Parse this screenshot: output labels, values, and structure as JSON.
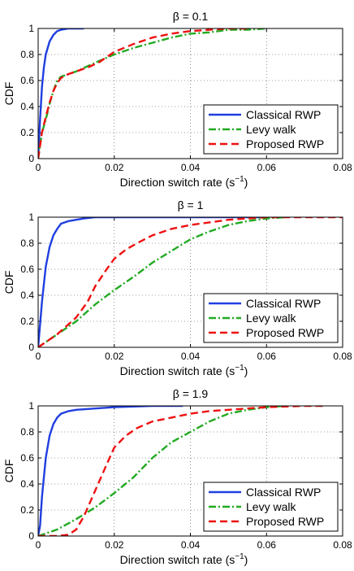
{
  "chart_data": [
    {
      "type": "line",
      "title": "β = 0.1",
      "xlabel": "Direction switch rate (s",
      "xlabel_sup": "−1",
      "xlabel_end": ")",
      "ylabel": "CDF",
      "xlim": [
        0,
        0.08
      ],
      "ylim": [
        0,
        1
      ],
      "xticks": [
        "0",
        "0.02",
        "0.04",
        "0.06",
        "0.08"
      ],
      "yticks": [
        "0",
        "0.2",
        "0.4",
        "0.6",
        "0.8",
        "1"
      ],
      "grid": true,
      "legend": "bottom-right",
      "series": [
        {
          "name": "Classical RWP",
          "color": "#1f3fe0",
          "dash": "solid",
          "x": [
            0,
            0.0005,
            0.001,
            0.0015,
            0.002,
            0.003,
            0.004,
            0.005,
            0.006,
            0.007,
            0.008,
            0.009,
            0.01,
            0.012
          ],
          "y": [
            0,
            0.3,
            0.55,
            0.7,
            0.8,
            0.9,
            0.95,
            0.98,
            0.99,
            0.995,
            1,
            1,
            1,
            1
          ]
        },
        {
          "name": "Levy walk",
          "color": "#22aa22",
          "dash": "dashdot",
          "x": [
            0,
            0.001,
            0.002,
            0.003,
            0.004,
            0.005,
            0.006,
            0.008,
            0.01,
            0.013,
            0.016,
            0.02,
            0.025,
            0.03,
            0.035,
            0.04,
            0.045,
            0.05,
            0.055,
            0.06
          ],
          "y": [
            0,
            0.2,
            0.3,
            0.42,
            0.52,
            0.6,
            0.63,
            0.65,
            0.67,
            0.71,
            0.75,
            0.8,
            0.85,
            0.89,
            0.93,
            0.96,
            0.97,
            0.99,
            0.99,
            1
          ]
        },
        {
          "name": "Proposed RWP",
          "color": "#ee1111",
          "dash": "dashed",
          "x": [
            0,
            0.001,
            0.002,
            0.003,
            0.004,
            0.005,
            0.006,
            0.008,
            0.01,
            0.013,
            0.016,
            0.02,
            0.025,
            0.03,
            0.035,
            0.04,
            0.045,
            0.05,
            0.055
          ],
          "y": [
            0,
            0.2,
            0.32,
            0.43,
            0.52,
            0.58,
            0.62,
            0.65,
            0.67,
            0.7,
            0.74,
            0.82,
            0.88,
            0.93,
            0.96,
            0.98,
            0.99,
            1,
            1
          ]
        }
      ]
    },
    {
      "type": "line",
      "title": "β = 1",
      "xlabel": "Direction switch rate (s",
      "xlabel_sup": "−1",
      "xlabel_end": ")",
      "ylabel": "CDF",
      "xlim": [
        0,
        0.08
      ],
      "ylim": [
        0,
        1
      ],
      "xticks": [
        "0",
        "0.02",
        "0.04",
        "0.06",
        "0.08"
      ],
      "yticks": [
        "0",
        "0.2",
        "0.4",
        "0.6",
        "0.8",
        "1"
      ],
      "grid": true,
      "legend": "bottom-right",
      "series": [
        {
          "name": "Classical RWP",
          "color": "#1f3fe0",
          "dash": "solid",
          "x": [
            0,
            0.001,
            0.002,
            0.003,
            0.004,
            0.005,
            0.006,
            0.008,
            0.01,
            0.012,
            0.015,
            0.02,
            0.03,
            0.04,
            0.05,
            0.06
          ],
          "y": [
            0,
            0.35,
            0.62,
            0.77,
            0.86,
            0.91,
            0.95,
            0.97,
            0.98,
            0.99,
            1,
            1,
            1,
            1,
            1,
            1
          ]
        },
        {
          "name": "Levy walk",
          "color": "#22aa22",
          "dash": "dashdot",
          "x": [
            0,
            0.005,
            0.01,
            0.015,
            0.02,
            0.025,
            0.03,
            0.035,
            0.04,
            0.045,
            0.05,
            0.055,
            0.06,
            0.065
          ],
          "y": [
            0,
            0.1,
            0.2,
            0.33,
            0.44,
            0.54,
            0.65,
            0.74,
            0.83,
            0.89,
            0.94,
            0.97,
            0.99,
            1
          ]
        },
        {
          "name": "Proposed RWP",
          "color": "#ee1111",
          "dash": "dashed",
          "x": [
            0,
            0.005,
            0.01,
            0.013,
            0.015,
            0.018,
            0.02,
            0.023,
            0.026,
            0.03,
            0.035,
            0.04,
            0.045,
            0.05,
            0.055,
            0.06,
            0.07,
            0.08
          ],
          "y": [
            0,
            0.1,
            0.23,
            0.35,
            0.47,
            0.6,
            0.68,
            0.75,
            0.8,
            0.86,
            0.91,
            0.94,
            0.96,
            0.98,
            0.99,
            1,
            1,
            1
          ]
        }
      ]
    },
    {
      "type": "line",
      "title": "β = 1.9",
      "xlabel": "Direction switch rate (s",
      "xlabel_sup": "−1",
      "xlabel_end": ")",
      "ylabel": "CDF",
      "xlim": [
        0,
        0.08
      ],
      "ylim": [
        0,
        1
      ],
      "xticks": [
        "0",
        "0.02",
        "0.04",
        "0.06",
        "0.08"
      ],
      "yticks": [
        "0",
        "0.2",
        "0.4",
        "0.6",
        "0.8",
        "1"
      ],
      "grid": true,
      "legend": "bottom-right",
      "series": [
        {
          "name": "Classical RWP",
          "color": "#1f3fe0",
          "dash": "solid",
          "x": [
            0,
            0.0005,
            0.001,
            0.002,
            0.003,
            0.004,
            0.005,
            0.006,
            0.008,
            0.01,
            0.015,
            0.02,
            0.03,
            0.038
          ],
          "y": [
            0,
            0.08,
            0.3,
            0.6,
            0.77,
            0.86,
            0.91,
            0.94,
            0.96,
            0.97,
            0.98,
            0.99,
            1,
            1
          ]
        },
        {
          "name": "Levy walk",
          "color": "#22aa22",
          "dash": "dashdot",
          "x": [
            0,
            0.005,
            0.01,
            0.015,
            0.02,
            0.025,
            0.03,
            0.035,
            0.04,
            0.045,
            0.05,
            0.055,
            0.06,
            0.065
          ],
          "y": [
            0,
            0.05,
            0.13,
            0.22,
            0.33,
            0.45,
            0.6,
            0.72,
            0.8,
            0.88,
            0.94,
            0.97,
            0.99,
            1
          ]
        },
        {
          "name": "Proposed RWP",
          "color": "#ee1111",
          "dash": "dashed",
          "x": [
            0,
            0.005,
            0.008,
            0.01,
            0.012,
            0.015,
            0.018,
            0.02,
            0.023,
            0.026,
            0.03,
            0.035,
            0.04,
            0.045,
            0.05,
            0.055,
            0.06,
            0.065,
            0.07,
            0.075
          ],
          "y": [
            0,
            0,
            0.01,
            0.05,
            0.15,
            0.35,
            0.55,
            0.68,
            0.77,
            0.83,
            0.88,
            0.91,
            0.94,
            0.96,
            0.97,
            0.98,
            0.99,
            0.995,
            1,
            1
          ]
        }
      ]
    }
  ]
}
